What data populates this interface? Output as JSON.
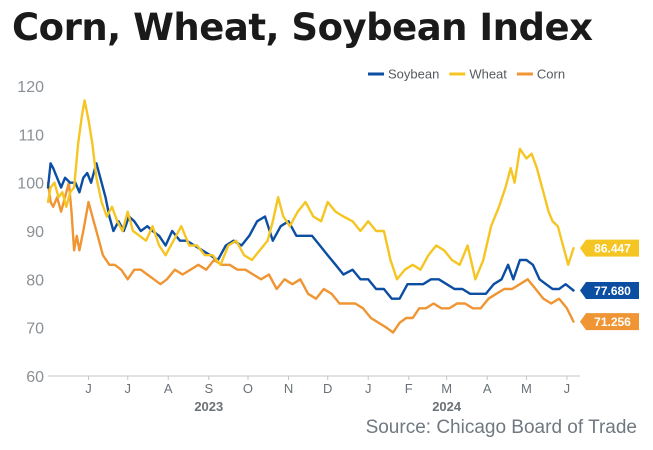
{
  "title": "Corn, Wheat, Soybean Index",
  "source": "Source: Chicago Board of Trade",
  "chart_data": {
    "type": "line",
    "ylim": [
      60,
      120
    ],
    "yticks": [
      60,
      70,
      80,
      90,
      100,
      110,
      120
    ],
    "xlim": [
      "2023-05-15",
      "2024-06-25"
    ],
    "month_ticks": [
      {
        "label": "J",
        "date": "2023-06-15"
      },
      {
        "label": "J",
        "date": "2023-07-15"
      },
      {
        "label": "A",
        "date": "2023-08-15"
      },
      {
        "label": "S",
        "date": "2023-09-15"
      },
      {
        "label": "O",
        "date": "2023-10-15"
      },
      {
        "label": "N",
        "date": "2023-11-15"
      },
      {
        "label": "D",
        "date": "2023-12-15"
      },
      {
        "label": "J",
        "date": "2024-01-15"
      },
      {
        "label": "F",
        "date": "2024-02-15"
      },
      {
        "label": "M",
        "date": "2024-03-15"
      },
      {
        "label": "A",
        "date": "2024-04-15"
      },
      {
        "label": "M",
        "date": "2024-05-15"
      },
      {
        "label": "J",
        "date": "2024-06-15"
      }
    ],
    "year_labels": [
      {
        "label": "2023",
        "date": "2023-09-15"
      },
      {
        "label": "2024",
        "date": "2024-03-15"
      }
    ],
    "legend_position": "top-right",
    "grid": false,
    "series": [
      {
        "name": "Soybean",
        "color": "#0b4ea2",
        "end_label": "77.680",
        "points": [
          [
            "2023-05-15",
            99
          ],
          [
            "2023-05-17",
            104
          ],
          [
            "2023-05-19",
            103
          ],
          [
            "2023-05-22",
            101
          ],
          [
            "2023-05-25",
            99
          ],
          [
            "2023-05-28",
            101
          ],
          [
            "2023-06-01",
            100
          ],
          [
            "2023-06-05",
            100
          ],
          [
            "2023-06-08",
            98
          ],
          [
            "2023-06-11",
            101
          ],
          [
            "2023-06-14",
            102
          ],
          [
            "2023-06-17",
            100
          ],
          [
            "2023-06-21",
            104
          ],
          [
            "2023-06-24",
            101
          ],
          [
            "2023-06-28",
            97
          ],
          [
            "2023-07-01",
            93
          ],
          [
            "2023-07-04",
            90
          ],
          [
            "2023-07-08",
            92
          ],
          [
            "2023-07-12",
            90
          ],
          [
            "2023-07-16",
            93
          ],
          [
            "2023-07-20",
            92
          ],
          [
            "2023-07-25",
            90
          ],
          [
            "2023-07-30",
            91
          ],
          [
            "2023-08-03",
            90
          ],
          [
            "2023-08-08",
            89
          ],
          [
            "2023-08-13",
            87
          ],
          [
            "2023-08-18",
            90
          ],
          [
            "2023-08-24",
            88
          ],
          [
            "2023-08-29",
            88
          ],
          [
            "2023-09-04",
            87
          ],
          [
            "2023-09-10",
            86
          ],
          [
            "2023-09-16",
            85
          ],
          [
            "2023-09-22",
            84
          ],
          [
            "2023-09-28",
            87
          ],
          [
            "2023-10-04",
            88
          ],
          [
            "2023-10-10",
            87
          ],
          [
            "2023-10-16",
            89
          ],
          [
            "2023-10-22",
            92
          ],
          [
            "2023-10-28",
            93
          ],
          [
            "2023-11-03",
            88
          ],
          [
            "2023-11-09",
            91
          ],
          [
            "2023-11-15",
            92
          ],
          [
            "2023-11-21",
            89
          ],
          [
            "2023-11-27",
            89
          ],
          [
            "2023-12-03",
            89
          ],
          [
            "2023-12-09",
            87
          ],
          [
            "2023-12-15",
            85
          ],
          [
            "2023-12-21",
            83
          ],
          [
            "2023-12-27",
            81
          ],
          [
            "2024-01-03",
            82
          ],
          [
            "2024-01-09",
            80
          ],
          [
            "2024-01-15",
            80
          ],
          [
            "2024-01-21",
            78
          ],
          [
            "2024-01-27",
            78
          ],
          [
            "2024-02-02",
            76
          ],
          [
            "2024-02-08",
            76
          ],
          [
            "2024-02-14",
            79
          ],
          [
            "2024-02-20",
            79
          ],
          [
            "2024-02-26",
            79
          ],
          [
            "2024-03-03",
            80
          ],
          [
            "2024-03-09",
            80
          ],
          [
            "2024-03-15",
            79
          ],
          [
            "2024-03-21",
            78
          ],
          [
            "2024-03-27",
            78
          ],
          [
            "2024-04-02",
            77
          ],
          [
            "2024-04-08",
            77
          ],
          [
            "2024-04-14",
            77
          ],
          [
            "2024-04-20",
            79
          ],
          [
            "2024-04-26",
            80
          ],
          [
            "2024-05-01",
            83
          ],
          [
            "2024-05-05",
            80
          ],
          [
            "2024-05-10",
            84
          ],
          [
            "2024-05-15",
            84
          ],
          [
            "2024-05-20",
            83
          ],
          [
            "2024-05-25",
            80
          ],
          [
            "2024-05-30",
            79
          ],
          [
            "2024-06-04",
            78
          ],
          [
            "2024-06-09",
            78
          ],
          [
            "2024-06-14",
            79
          ],
          [
            "2024-06-20",
            77.68
          ]
        ]
      },
      {
        "name": "Wheat",
        "color": "#f5c623",
        "end_label": "86.447",
        "points": [
          [
            "2023-05-15",
            96
          ],
          [
            "2023-05-17",
            99
          ],
          [
            "2023-05-20",
            100
          ],
          [
            "2023-05-23",
            97
          ],
          [
            "2023-05-26",
            98
          ],
          [
            "2023-05-29",
            95
          ],
          [
            "2023-06-01",
            98
          ],
          [
            "2023-06-04",
            99
          ],
          [
            "2023-06-07",
            108
          ],
          [
            "2023-06-10",
            114
          ],
          [
            "2023-06-12",
            117
          ],
          [
            "2023-06-15",
            113
          ],
          [
            "2023-06-18",
            108
          ],
          [
            "2023-06-21",
            101
          ],
          [
            "2023-06-25",
            96
          ],
          [
            "2023-06-29",
            93
          ],
          [
            "2023-07-03",
            95
          ],
          [
            "2023-07-07",
            92
          ],
          [
            "2023-07-11",
            90
          ],
          [
            "2023-07-15",
            94
          ],
          [
            "2023-07-19",
            90
          ],
          [
            "2023-07-24",
            89
          ],
          [
            "2023-07-29",
            88
          ],
          [
            "2023-08-03",
            91
          ],
          [
            "2023-08-08",
            87
          ],
          [
            "2023-08-13",
            85
          ],
          [
            "2023-08-19",
            88
          ],
          [
            "2023-08-25",
            91
          ],
          [
            "2023-08-31",
            87
          ],
          [
            "2023-09-06",
            87
          ],
          [
            "2023-09-12",
            85
          ],
          [
            "2023-09-18",
            85
          ],
          [
            "2023-09-24",
            83
          ],
          [
            "2023-09-30",
            87
          ],
          [
            "2023-10-06",
            88
          ],
          [
            "2023-10-12",
            85
          ],
          [
            "2023-10-18",
            84
          ],
          [
            "2023-10-24",
            86
          ],
          [
            "2023-10-30",
            88
          ],
          [
            "2023-11-03",
            92
          ],
          [
            "2023-11-07",
            97
          ],
          [
            "2023-11-11",
            93
          ],
          [
            "2023-11-16",
            91
          ],
          [
            "2023-11-22",
            94
          ],
          [
            "2023-11-28",
            96
          ],
          [
            "2023-12-04",
            93
          ],
          [
            "2023-12-10",
            92
          ],
          [
            "2023-12-15",
            96
          ],
          [
            "2023-12-21",
            94
          ],
          [
            "2023-12-27",
            93
          ],
          [
            "2024-01-03",
            92
          ],
          [
            "2024-01-09",
            90
          ],
          [
            "2024-01-15",
            92
          ],
          [
            "2024-01-21",
            90
          ],
          [
            "2024-01-27",
            90
          ],
          [
            "2024-02-01",
            84
          ],
          [
            "2024-02-06",
            80
          ],
          [
            "2024-02-12",
            82
          ],
          [
            "2024-02-18",
            83
          ],
          [
            "2024-02-24",
            82
          ],
          [
            "2024-03-01",
            85
          ],
          [
            "2024-03-07",
            87
          ],
          [
            "2024-03-13",
            86
          ],
          [
            "2024-03-19",
            84
          ],
          [
            "2024-03-25",
            83
          ],
          [
            "2024-03-31",
            87
          ],
          [
            "2024-04-06",
            80
          ],
          [
            "2024-04-12",
            84
          ],
          [
            "2024-04-18",
            91
          ],
          [
            "2024-04-24",
            95
          ],
          [
            "2024-04-29",
            99
          ],
          [
            "2024-05-03",
            103
          ],
          [
            "2024-05-06",
            100
          ],
          [
            "2024-05-10",
            107
          ],
          [
            "2024-05-15",
            105
          ],
          [
            "2024-05-19",
            106
          ],
          [
            "2024-05-23",
            103
          ],
          [
            "2024-05-28",
            98
          ],
          [
            "2024-06-01",
            94
          ],
          [
            "2024-06-04",
            92
          ],
          [
            "2024-06-08",
            91
          ],
          [
            "2024-06-12",
            87
          ],
          [
            "2024-06-16",
            83
          ],
          [
            "2024-06-20",
            86.447
          ]
        ]
      },
      {
        "name": "Corn",
        "color": "#ef9533",
        "end_label": "71.256",
        "points": [
          [
            "2023-05-15",
            100
          ],
          [
            "2023-05-17",
            96
          ],
          [
            "2023-05-19",
            95
          ],
          [
            "2023-05-22",
            97
          ],
          [
            "2023-05-25",
            94
          ],
          [
            "2023-05-28",
            97
          ],
          [
            "2023-05-31",
            100
          ],
          [
            "2023-06-02",
            94
          ],
          [
            "2023-06-04",
            86
          ],
          [
            "2023-06-06",
            89
          ],
          [
            "2023-06-08",
            86
          ],
          [
            "2023-06-11",
            90
          ],
          [
            "2023-06-15",
            96
          ],
          [
            "2023-06-18",
            93
          ],
          [
            "2023-06-22",
            89
          ],
          [
            "2023-06-26",
            85
          ],
          [
            "2023-07-01",
            83
          ],
          [
            "2023-07-05",
            83
          ],
          [
            "2023-07-10",
            82
          ],
          [
            "2023-07-15",
            80
          ],
          [
            "2023-07-20",
            82
          ],
          [
            "2023-07-25",
            82
          ],
          [
            "2023-07-30",
            81
          ],
          [
            "2023-08-04",
            80
          ],
          [
            "2023-08-09",
            79
          ],
          [
            "2023-08-14",
            80
          ],
          [
            "2023-08-20",
            82
          ],
          [
            "2023-08-26",
            81
          ],
          [
            "2023-09-01",
            82
          ],
          [
            "2023-09-07",
            83
          ],
          [
            "2023-09-13",
            82
          ],
          [
            "2023-09-19",
            84
          ],
          [
            "2023-09-25",
            83
          ],
          [
            "2023-10-01",
            83
          ],
          [
            "2023-10-07",
            82
          ],
          [
            "2023-10-13",
            82
          ],
          [
            "2023-10-19",
            81
          ],
          [
            "2023-10-25",
            80
          ],
          [
            "2023-10-31",
            81
          ],
          [
            "2023-11-06",
            78
          ],
          [
            "2023-11-12",
            80
          ],
          [
            "2023-11-18",
            79
          ],
          [
            "2023-11-24",
            80
          ],
          [
            "2023-11-30",
            77
          ],
          [
            "2023-12-06",
            76
          ],
          [
            "2023-12-12",
            78
          ],
          [
            "2023-12-18",
            77
          ],
          [
            "2023-12-24",
            75
          ],
          [
            "2023-12-30",
            75
          ],
          [
            "2024-01-05",
            75
          ],
          [
            "2024-01-11",
            74
          ],
          [
            "2024-01-17",
            72
          ],
          [
            "2024-01-23",
            71
          ],
          [
            "2024-01-29",
            70
          ],
          [
            "2024-02-03",
            69
          ],
          [
            "2024-02-08",
            71
          ],
          [
            "2024-02-13",
            72
          ],
          [
            "2024-02-18",
            72
          ],
          [
            "2024-02-23",
            74
          ],
          [
            "2024-02-28",
            74
          ],
          [
            "2024-03-05",
            75
          ],
          [
            "2024-03-11",
            74
          ],
          [
            "2024-03-17",
            74
          ],
          [
            "2024-03-23",
            75
          ],
          [
            "2024-03-29",
            75
          ],
          [
            "2024-04-04",
            74
          ],
          [
            "2024-04-10",
            74
          ],
          [
            "2024-04-16",
            76
          ],
          [
            "2024-04-22",
            77
          ],
          [
            "2024-04-28",
            78
          ],
          [
            "2024-05-04",
            78
          ],
          [
            "2024-05-10",
            79
          ],
          [
            "2024-05-16",
            80
          ],
          [
            "2024-05-22",
            78
          ],
          [
            "2024-05-28",
            76
          ],
          [
            "2024-06-03",
            75
          ],
          [
            "2024-06-09",
            76
          ],
          [
            "2024-06-15",
            74
          ],
          [
            "2024-06-20",
            71.256
          ]
        ]
      }
    ]
  }
}
